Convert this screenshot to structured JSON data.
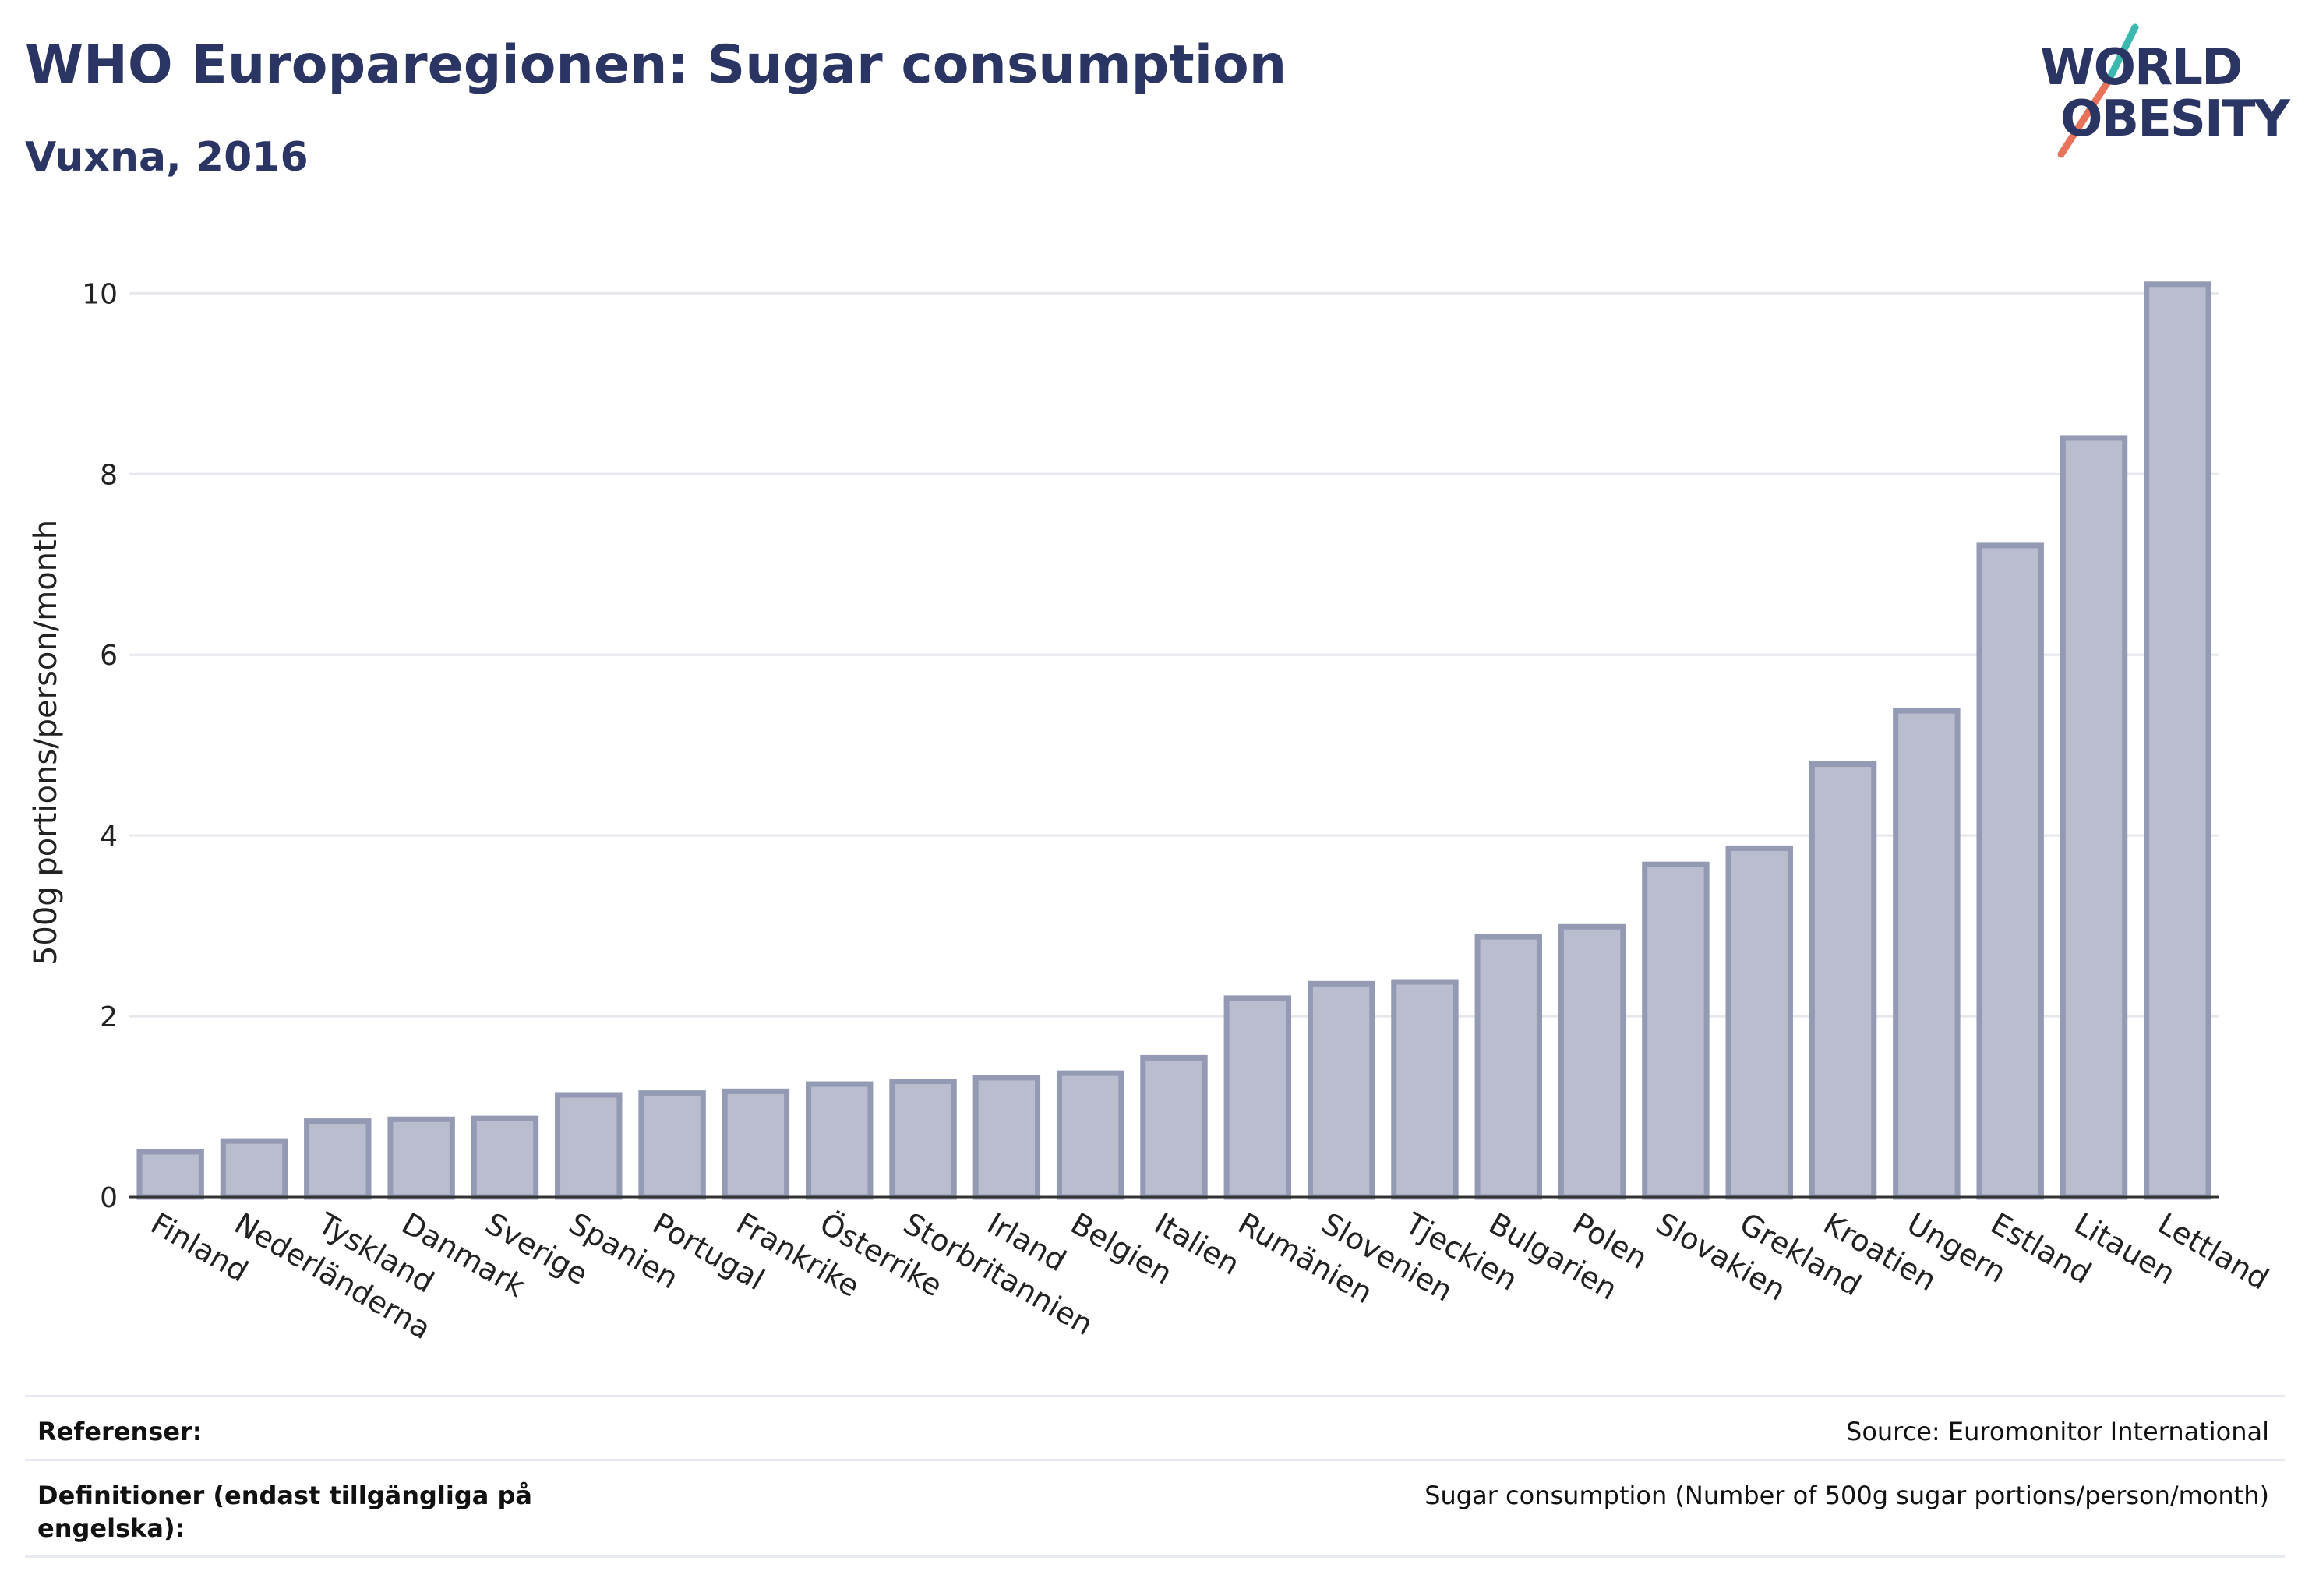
{
  "header": {
    "title": "WHO Europaregionen: Sugar consumption",
    "subtitle": "Vuxna, 2016"
  },
  "logo": {
    "line1": "WORLD",
    "line2": "OBESITY",
    "accent_color_1": "#3bb8b0",
    "accent_color_2": "#e8735a"
  },
  "colors": {
    "bar_fill": "#b9bdcd",
    "bar_stroke": "#9499b4",
    "text_primary": "#2a3564",
    "grid": "#e6e8ee"
  },
  "chart_data": {
    "type": "bar",
    "title": "WHO Europaregionen: Sugar consumption",
    "subtitle": "Vuxna, 2016",
    "xlabel": "",
    "ylabel": "500g portions/person/month",
    "ylim": [
      0,
      10.4
    ],
    "yticks": [
      0,
      2,
      4,
      6,
      8,
      10
    ],
    "grid": true,
    "categories": [
      "Finland",
      "Nederländerna",
      "Tyskland",
      "Danmark",
      "Sverige",
      "Spanien",
      "Portugal",
      "Frankrike",
      "Österrike",
      "Storbritannien",
      "Irland",
      "Belgien",
      "Italien",
      "Rumänien",
      "Slovenien",
      "Tjeckien",
      "Bulgarien",
      "Polen",
      "Slovakien",
      "Grekland",
      "Kroatien",
      "Ungern",
      "Estland",
      "Litauen",
      "Lettland"
    ],
    "values": [
      0.5,
      0.62,
      0.84,
      0.86,
      0.87,
      1.13,
      1.15,
      1.17,
      1.25,
      1.28,
      1.32,
      1.37,
      1.54,
      2.2,
      2.36,
      2.38,
      2.88,
      2.99,
      3.68,
      3.86,
      4.79,
      5.38,
      7.21,
      8.4,
      10.1
    ]
  },
  "footer": {
    "references_label": "Referenser:",
    "references_value": "Source: Euromonitor International",
    "definitions_label": "Definitioner (endast tillgängliga på engelska):",
    "definitions_value": "Sugar consumption (Number of 500g sugar portions/person/month)"
  }
}
